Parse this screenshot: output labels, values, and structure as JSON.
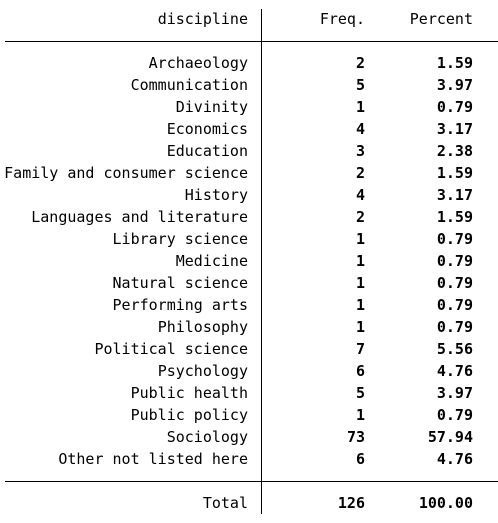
{
  "header": {
    "variable": "discipline",
    "freq": "Freq.",
    "percent": "Percent"
  },
  "rows": [
    {
      "label": "Archaeology",
      "freq": "2",
      "percent": "1.59"
    },
    {
      "label": "Communication",
      "freq": "5",
      "percent": "3.97"
    },
    {
      "label": "Divinity",
      "freq": "1",
      "percent": "0.79"
    },
    {
      "label": "Economics",
      "freq": "4",
      "percent": "3.17"
    },
    {
      "label": "Education",
      "freq": "3",
      "percent": "2.38"
    },
    {
      "label": "Family and consumer science",
      "freq": "2",
      "percent": "1.59"
    },
    {
      "label": "History",
      "freq": "4",
      "percent": "3.17"
    },
    {
      "label": "Languages and literature",
      "freq": "2",
      "percent": "1.59"
    },
    {
      "label": "Library science",
      "freq": "1",
      "percent": "0.79"
    },
    {
      "label": "Medicine",
      "freq": "1",
      "percent": "0.79"
    },
    {
      "label": "Natural science",
      "freq": "1",
      "percent": "0.79"
    },
    {
      "label": "Performing arts",
      "freq": "1",
      "percent": "0.79"
    },
    {
      "label": "Philosophy",
      "freq": "1",
      "percent": "0.79"
    },
    {
      "label": "Political science",
      "freq": "7",
      "percent": "5.56"
    },
    {
      "label": "Psychology",
      "freq": "6",
      "percent": "4.76"
    },
    {
      "label": "Public health",
      "freq": "5",
      "percent": "3.97"
    },
    {
      "label": "Public policy",
      "freq": "1",
      "percent": "0.79"
    },
    {
      "label": "Sociology",
      "freq": "73",
      "percent": "57.94"
    },
    {
      "label": "Other not listed here",
      "freq": "6",
      "percent": "4.76"
    }
  ],
  "total": {
    "label": "Total",
    "freq": "126",
    "percent": "100.00"
  }
}
